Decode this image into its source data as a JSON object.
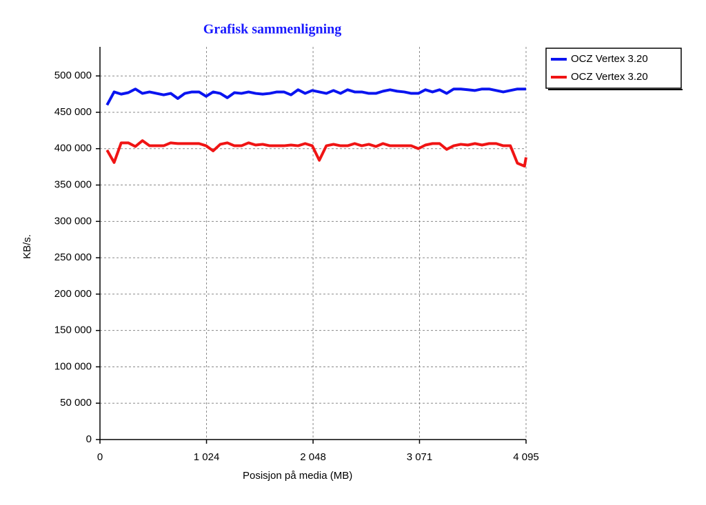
{
  "chart_data": {
    "type": "line",
    "title": "Grafisk sammenligning",
    "x_label": "Posisjon på media (MB)",
    "y_label": "KB/s.",
    "title_color": "#1a1aff",
    "grid": true,
    "legend": "top-right-outside",
    "xlim": [
      0,
      4095
    ],
    "ylim": [
      0,
      540000
    ],
    "xticks": [
      0,
      {
        "value": 1024,
        "label": "1 024"
      },
      {
        "value": 2048,
        "label": "2 048"
      },
      {
        "value": 3071,
        "label": "3 071"
      },
      {
        "value": 4095,
        "label": "4 095"
      }
    ],
    "yticks": [
      0,
      {
        "value": 50000,
        "label": "50 000"
      },
      {
        "value": 100000,
        "label": "100 000"
      },
      {
        "value": 150000,
        "label": "150 000"
      },
      {
        "value": 200000,
        "label": "200 000"
      },
      {
        "value": 250000,
        "label": "250 000"
      },
      {
        "value": 300000,
        "label": "300 000"
      },
      {
        "value": 350000,
        "label": "350 000"
      },
      {
        "value": 400000,
        "label": "400 000"
      },
      {
        "value": 450000,
        "label": "450 000"
      },
      {
        "value": 500000,
        "label": "500 000"
      }
    ],
    "x": [
      68,
      136,
      204,
      272,
      340,
      408,
      476,
      544,
      612,
      680,
      748,
      816,
      884,
      952,
      1020,
      1088,
      1156,
      1224,
      1292,
      1360,
      1428,
      1496,
      1564,
      1632,
      1700,
      1768,
      1836,
      1904,
      1972,
      2040,
      2108,
      2176,
      2244,
      2312,
      2380,
      2448,
      2516,
      2584,
      2652,
      2720,
      2788,
      2856,
      2924,
      2992,
      3060,
      3128,
      3196,
      3264,
      3332,
      3400,
      3468,
      3536,
      3604,
      3672,
      3740,
      3808,
      3876,
      3944,
      4012,
      4080,
      4095
    ],
    "series": [
      {
        "name": "OCZ Vertex 3.20",
        "color": "#0a14f0",
        "values": [
          460000,
          478000,
          475000,
          477000,
          482000,
          476000,
          478000,
          476000,
          474000,
          476000,
          469000,
          476000,
          478000,
          478000,
          472000,
          478000,
          476000,
          470000,
          477000,
          476000,
          478000,
          476000,
          475000,
          476000,
          478000,
          478000,
          474000,
          481000,
          476000,
          480000,
          478000,
          476000,
          480000,
          476000,
          481000,
          478000,
          478000,
          476000,
          476000,
          479000,
          481000,
          479000,
          478000,
          476000,
          476000,
          481000,
          478000,
          481000,
          476000,
          482000,
          482000,
          481000,
          480000,
          482000,
          482000,
          480000,
          478000,
          480000,
          482000,
          482000,
          482000
        ]
      },
      {
        "name": "OCZ Vertex 3.20",
        "color": "#f01414",
        "values": [
          398000,
          381000,
          408000,
          408000,
          403000,
          411000,
          404000,
          404000,
          404000,
          408000,
          407000,
          407000,
          407000,
          407000,
          404000,
          397000,
          406000,
          408000,
          404000,
          404000,
          408000,
          405000,
          406000,
          404000,
          404000,
          404000,
          405000,
          404000,
          407000,
          404000,
          384000,
          404000,
          406000,
          404000,
          404000,
          407000,
          404000,
          406000,
          403000,
          407000,
          404000,
          404000,
          404000,
          404000,
          400000,
          405000,
          407000,
          407000,
          399000,
          404000,
          406000,
          405000,
          407000,
          405000,
          407000,
          407000,
          404000,
          404000,
          380000,
          376000,
          388000
        ]
      }
    ]
  }
}
